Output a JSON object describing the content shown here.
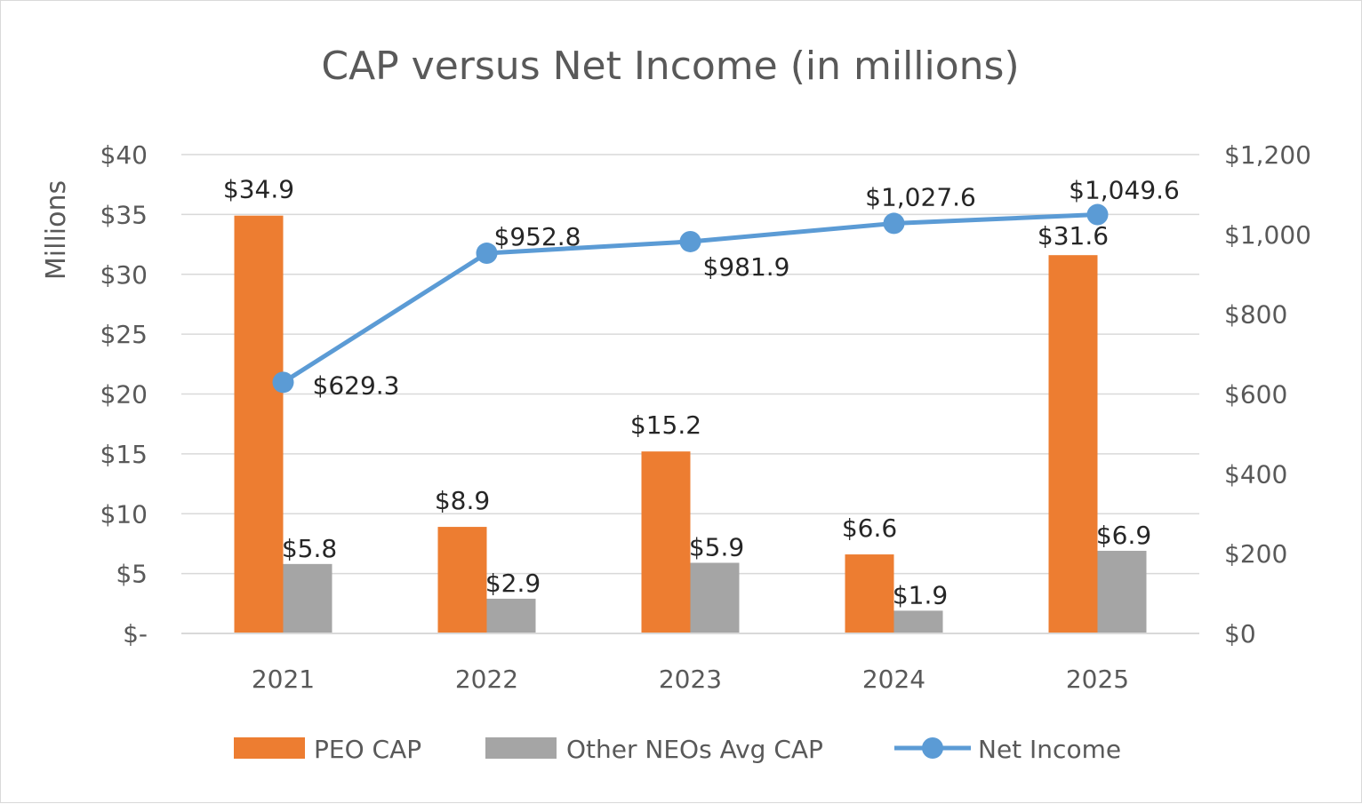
{
  "chart_data": {
    "type": "bar",
    "title": "CAP versus Net Income (in millions)",
    "ylabel": "Millions",
    "xlabel": "",
    "categories": [
      "2021",
      "2022",
      "2023",
      "2024",
      "2025"
    ],
    "ylim": [
      0,
      40
    ],
    "y2lim": [
      0,
      1200
    ],
    "left_ticks": [
      {
        "value": 0,
        "label": "$-"
      },
      {
        "value": 5,
        "label": "$5"
      },
      {
        "value": 10,
        "label": "$10"
      },
      {
        "value": 15,
        "label": "$15"
      },
      {
        "value": 20,
        "label": "$20"
      },
      {
        "value": 25,
        "label": "$25"
      },
      {
        "value": 30,
        "label": "$30"
      },
      {
        "value": 35,
        "label": "$35"
      },
      {
        "value": 40,
        "label": "$40"
      }
    ],
    "right_ticks": [
      {
        "value": 0,
        "label": "$0"
      },
      {
        "value": 200,
        "label": "$200"
      },
      {
        "value": 400,
        "label": "$400"
      },
      {
        "value": 600,
        "label": "$600"
      },
      {
        "value": 800,
        "label": "$800"
      },
      {
        "value": 1000,
        "label": "$1,000"
      },
      {
        "value": 1200,
        "label": "$1,200"
      }
    ],
    "series": [
      {
        "name": "PEO CAP",
        "type": "bar",
        "axis": "left",
        "color": "#ed7d31",
        "values": [
          34.9,
          8.9,
          15.2,
          6.6,
          31.6
        ],
        "labels": [
          "$34.9",
          "$8.9",
          "$15.2",
          "$6.6",
          "$31.6"
        ]
      },
      {
        "name": "Other NEOs Avg CAP",
        "type": "bar",
        "axis": "left",
        "color": "#a5a5a5",
        "values": [
          5.8,
          2.9,
          5.9,
          1.9,
          6.9
        ],
        "labels": [
          "$5.8",
          "$2.9",
          "$5.9",
          "$1.9",
          "$6.9"
        ]
      },
      {
        "name": "Net Income",
        "type": "line",
        "axis": "right",
        "color": "#5b9bd5",
        "values": [
          629.3,
          952.8,
          981.9,
          1027.6,
          1049.6
        ],
        "labels": [
          "$629.3",
          "$952.8",
          "$981.9",
          "$1,027.6",
          "$1,049.6"
        ]
      }
    ],
    "legend_position": "bottom",
    "grid": true
  }
}
